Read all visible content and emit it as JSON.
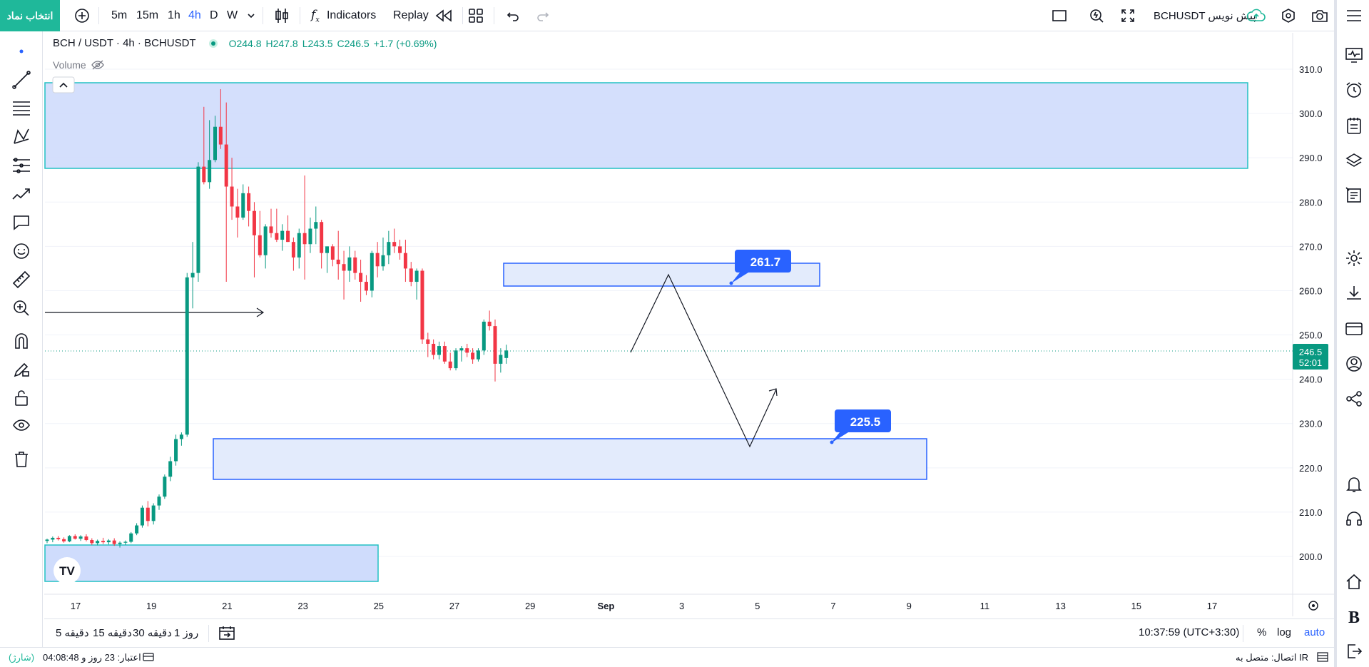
{
  "toolbar": {
    "symbol_button": "انتخاب نماد",
    "intervals": [
      "5m",
      "15m",
      "1h",
      "4h",
      "D",
      "W"
    ],
    "active_interval": "4h",
    "indicators_label": "Indicators",
    "replay_label": "Replay",
    "symbol_name": "BCHUSDT پیش نویس"
  },
  "legend": {
    "title": "BCH / USDT · 4h · BCHUSDT",
    "open": "O244.8",
    "high": "H247.8",
    "low": "L243.5",
    "close": "C246.5",
    "change": "+1.7 (+0.69%)",
    "volume_label": "Volume"
  },
  "price_axis": {
    "ticks": [
      "310.0",
      "300.0",
      "290.0",
      "280.0",
      "270.0",
      "260.0",
      "250.0",
      "240.0",
      "230.0",
      "220.0",
      "210.0",
      "200.0"
    ],
    "last_price": "246.5",
    "countdown": "52:01"
  },
  "time_axis": {
    "ticks": [
      "17",
      "19",
      "21",
      "23",
      "25",
      "27",
      "29",
      "Sep",
      "3",
      "5",
      "7",
      "9",
      "11",
      "13",
      "15",
      "17"
    ]
  },
  "annotations": {
    "upper_target": "261.7",
    "lower_target": "225.5"
  },
  "bottombar": {
    "ranges": [
      "5 دقیقه",
      "15 دقیقه",
      "30 دقیقه",
      "1 روز"
    ],
    "clock": "10:37:59 (UTC+3:30)",
    "percent": "%",
    "log": "log",
    "auto": "auto"
  },
  "statusbar": {
    "connection": "اتصال: متصل به IR",
    "credit": "اعتبار: 23 روز و 04:08:48",
    "charge": "(شارژ)"
  },
  "colors": {
    "up": "#089981",
    "down": "#f23645",
    "accent": "#2962ff",
    "zone_fill": "#cfdcfc",
    "brand": "#1fb89a"
  },
  "chart_data": {
    "type": "candlestick",
    "symbol": "BCHUSDT",
    "interval": "4h",
    "ylim": [
      195,
      312
    ],
    "candles": [
      [
        203.5,
        204,
        203,
        203.8
      ],
      [
        203.8,
        204.5,
        203.2,
        204.2
      ],
      [
        204.2,
        204.6,
        203.6,
        203.9
      ],
      [
        203.9,
        204.3,
        203.1,
        203.4
      ],
      [
        203.4,
        204.8,
        203.2,
        204.6
      ],
      [
        204.6,
        205,
        203.8,
        204.0
      ],
      [
        204.0,
        204.8,
        203.5,
        204.5
      ],
      [
        204.5,
        205,
        203.4,
        203.7
      ],
      [
        203.7,
        204.1,
        202.6,
        203.0
      ],
      [
        203.0,
        203.8,
        202.5,
        203.5
      ],
      [
        203.5,
        204.2,
        202.8,
        203.2
      ],
      [
        203.2,
        203.9,
        202.7,
        203.6
      ],
      [
        203.6,
        204.1,
        202.4,
        202.8
      ],
      [
        202.8,
        203.4,
        202.0,
        203.1
      ],
      [
        203.1,
        203.6,
        202.6,
        203.3
      ],
      [
        203.3,
        205.5,
        203.0,
        205.2
      ],
      [
        205.2,
        207.5,
        204.8,
        207.0
      ],
      [
        207.0,
        211.5,
        206.5,
        211.0
      ],
      [
        211.0,
        212.5,
        206.8,
        208.0
      ],
      [
        208.0,
        212.0,
        207.2,
        211.5
      ],
      [
        211.5,
        214.0,
        210.5,
        213.5
      ],
      [
        213.5,
        218.5,
        213.0,
        218.0
      ],
      [
        218.0,
        222.5,
        217.0,
        221.5
      ],
      [
        221.5,
        227.5,
        220.5,
        226.5
      ],
      [
        226.5,
        228.0,
        225.0,
        227.5
      ],
      [
        227.5,
        264.0,
        227.0,
        263.0
      ],
      [
        263.0,
        271.0,
        256.0,
        264.0
      ],
      [
        264.0,
        289.0,
        262.0,
        288.0
      ],
      [
        288.0,
        301.5,
        284.0,
        284.5
      ],
      [
        284.5,
        298.5,
        283.0,
        289.5
      ],
      [
        289.5,
        299.5,
        289.0,
        297.0
      ],
      [
        297.0,
        305.5,
        292.0,
        293.0
      ],
      [
        293.0,
        302.5,
        262.0,
        283.5
      ],
      [
        283.5,
        290.0,
        276.0,
        279.0
      ],
      [
        279.0,
        283.0,
        272.0,
        276.5
      ],
      [
        276.5,
        284.0,
        276.0,
        282.0
      ],
      [
        282.0,
        283.5,
        274.5,
        278.0
      ],
      [
        278.0,
        280.0,
        263.0,
        272.5
      ],
      [
        272.5,
        278.0,
        267.5,
        268.0
      ],
      [
        268.0,
        275.0,
        265.0,
        274.5
      ],
      [
        274.5,
        278.5,
        272.0,
        273.0
      ],
      [
        273.0,
        278.5,
        271.0,
        271.5
      ],
      [
        271.5,
        275.0,
        269.0,
        273.5
      ],
      [
        273.5,
        277.0,
        271.0,
        271.0
      ],
      [
        271.0,
        272.0,
        264.5,
        267.5
      ],
      [
        267.5,
        274.0,
        265.0,
        273.0
      ],
      [
        273.0,
        286.0,
        262.5,
        270.5
      ],
      [
        270.5,
        276.5,
        268.5,
        274.0
      ],
      [
        274.0,
        279.0,
        270.5,
        275.5
      ],
      [
        275.5,
        276.0,
        265.0,
        268.5
      ],
      [
        268.5,
        270.0,
        264.0,
        270.0
      ],
      [
        270.0,
        270.5,
        265.5,
        267.0
      ],
      [
        267.0,
        273.5,
        262.5,
        266.0
      ],
      [
        266.0,
        269.0,
        258.0,
        264.5
      ],
      [
        264.5,
        270.0,
        262.0,
        267.5
      ],
      [
        267.5,
        269.0,
        262.5,
        264.0
      ],
      [
        264.0,
        267.0,
        257.5,
        262.0
      ],
      [
        262.0,
        263.5,
        259.0,
        260.0
      ],
      [
        260.0,
        269.0,
        258.5,
        268.5
      ],
      [
        268.5,
        271.0,
        263.0,
        265.5
      ],
      [
        265.5,
        272.0,
        264.5,
        268.0
      ],
      [
        268.0,
        273.5,
        266.0,
        271.0
      ],
      [
        271.0,
        274.0,
        268.5,
        270.0
      ],
      [
        270.0,
        271.5,
        267.0,
        268.5
      ],
      [
        268.5,
        271.5,
        262.0,
        265.0
      ],
      [
        265.0,
        266.5,
        261.0,
        262.0
      ],
      [
        262.0,
        265.0,
        258.0,
        264.5
      ],
      [
        264.5,
        265.0,
        248.0,
        249.0
      ],
      [
        249.0,
        250.5,
        245.0,
        248.0
      ],
      [
        248.0,
        249.0,
        244.5,
        245.5
      ],
      [
        245.5,
        248.5,
        244.5,
        247.5
      ],
      [
        247.5,
        248.5,
        243.5,
        244.0
      ],
      [
        244.0,
        246.0,
        242.0,
        242.5
      ],
      [
        242.5,
        247.0,
        242.0,
        246.5
      ],
      [
        246.5,
        247.5,
        244.0,
        247.0
      ],
      [
        247.0,
        248.0,
        245.0,
        246.0
      ],
      [
        246.0,
        247.0,
        243.5,
        244.5
      ],
      [
        244.5,
        247.0,
        244.0,
        246.5
      ],
      [
        246.5,
        253.5,
        245.5,
        253.0
      ],
      [
        253.0,
        255.5,
        251.0,
        252.0
      ],
      [
        252.0,
        253.5,
        239.5,
        243.5
      ],
      [
        243.5,
        247.0,
        241.5,
        245.5
      ],
      [
        244.8,
        247.8,
        243.5,
        246.5
      ]
    ]
  }
}
